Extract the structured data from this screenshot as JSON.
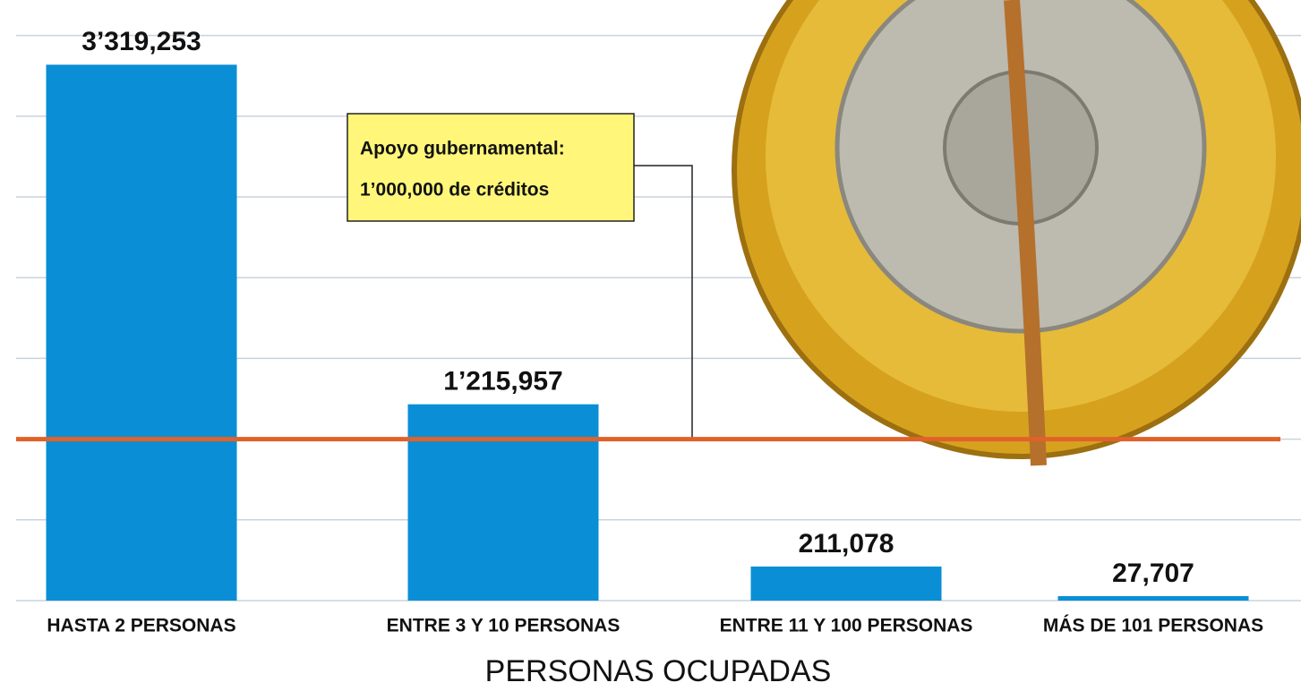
{
  "chart_data": {
    "type": "bar",
    "categories": [
      "HASTA 2 PERSONAS",
      "ENTRE 3 Y 10 PERSONAS",
      "ENTRE 11 Y 100 PERSONAS",
      "MÁS DE 101 PERSONAS"
    ],
    "values": [
      3319253,
      1215957,
      211078,
      27707
    ],
    "value_labels": [
      "3’319,253",
      "1’215,957",
      "211,078",
      "27,707"
    ],
    "color": "#0a8fd6",
    "x_label": "PERSONAS OCUPADAS",
    "ylim": [
      0,
      3720000
    ],
    "yticks": [
      0,
      500000,
      1000000,
      1500000,
      2000000,
      2500000,
      3000000,
      3500000
    ],
    "grid": true,
    "reference_line": {
      "value": 1000000,
      "color": "#e0622a",
      "lines": [
        "Apoyo gubernamental:",
        "1’000,000 de créditos"
      ]
    }
  }
}
